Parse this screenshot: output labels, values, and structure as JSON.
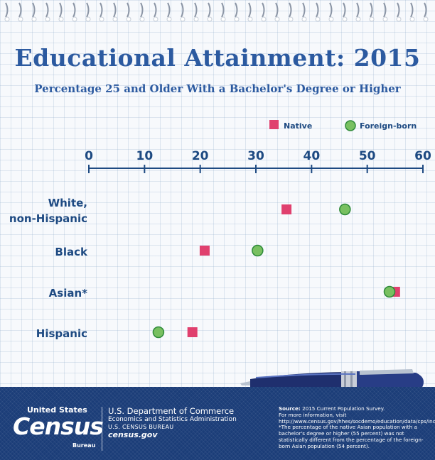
{
  "title": "Educational Attainment: 2015",
  "subtitle": "Percentage 25 and Older With a Bachelor's Degree or Higher",
  "colors": {
    "title": "#2c5aa0",
    "axis": "#1e4a82",
    "native": "#e0406e",
    "foreign_born": "#78c060",
    "footer": "#1b3d78"
  },
  "chart_data": {
    "type": "scatter",
    "orientation": "horizontal",
    "categories": [
      "White,\nnon-Hispanic",
      "Black",
      "Asian*",
      "Hispanic"
    ],
    "series": [
      {
        "name": "Native",
        "marker": "square",
        "values": [
          35.5,
          20.8,
          55.0,
          18.6
        ]
      },
      {
        "name": "Foreign-born",
        "marker": "circle",
        "values": [
          46.0,
          30.3,
          54.0,
          12.5
        ]
      }
    ],
    "xlim": [
      0,
      60
    ],
    "xticks": [
      0,
      10,
      20,
      30,
      40,
      50,
      60
    ],
    "xlabel": "",
    "ylabel": "",
    "grid": true,
    "legend_position": "top-right"
  },
  "pen_icon": "pen-icon",
  "footer": {
    "logo": {
      "top": "United States",
      "tm": "™",
      "main": "Census",
      "bottom": "Bureau"
    },
    "dept": {
      "line1": "U.S. Department of Commerce",
      "line2": "Economics and Statistics Administration",
      "line3": "U.S. CENSUS BUREAU",
      "line4": "census.gov"
    },
    "source": {
      "label": "Source:",
      "text": " 2015 Current Population Survey.",
      "line2": "For more information, visit http://www.census.gov/hhes/socdemo/education/data/cps/index.html",
      "note": "*The percentage of the native Asian population with a bachelor's degree or higher (55 percent) was not statistically different from the percentage of the foreign-born Asian population (54 percent)."
    }
  }
}
